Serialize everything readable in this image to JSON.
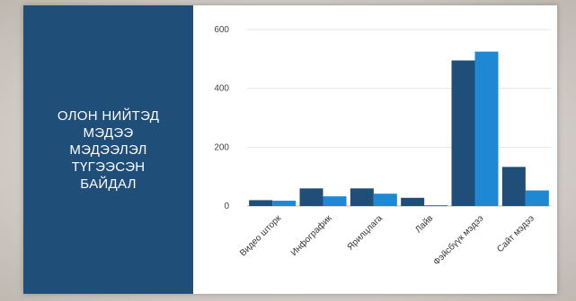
{
  "slide": {
    "title_lines": [
      "ОЛОН НИЙТЭД",
      "МЭДЭЭ",
      "МЭДЭЭЛЭЛ",
      "ТҮГЭЭСЭН",
      "БАЙДАЛ"
    ]
  },
  "colors": {
    "panel": "#1f4e79",
    "series_dark": "#1f4e79",
    "series_light": "#1e88d2"
  },
  "chart_data": {
    "type": "bar",
    "title": "",
    "xlabel": "",
    "ylabel": "",
    "ylim": [
      0,
      600
    ],
    "yticks": [
      0,
      200,
      400,
      600
    ],
    "grid": true,
    "legend": "none",
    "categories": [
      "Видео шторк",
      "Инфографик",
      "Ярилцлага",
      "Лайв",
      "Фэйсбүүк мэдээ",
      "Сайт мэдээ"
    ],
    "series": [
      {
        "values": [
          20,
          60,
          60,
          28,
          495,
          133
        ]
      },
      {
        "values": [
          18,
          33,
          42,
          3,
          525,
          53
        ]
      }
    ]
  }
}
